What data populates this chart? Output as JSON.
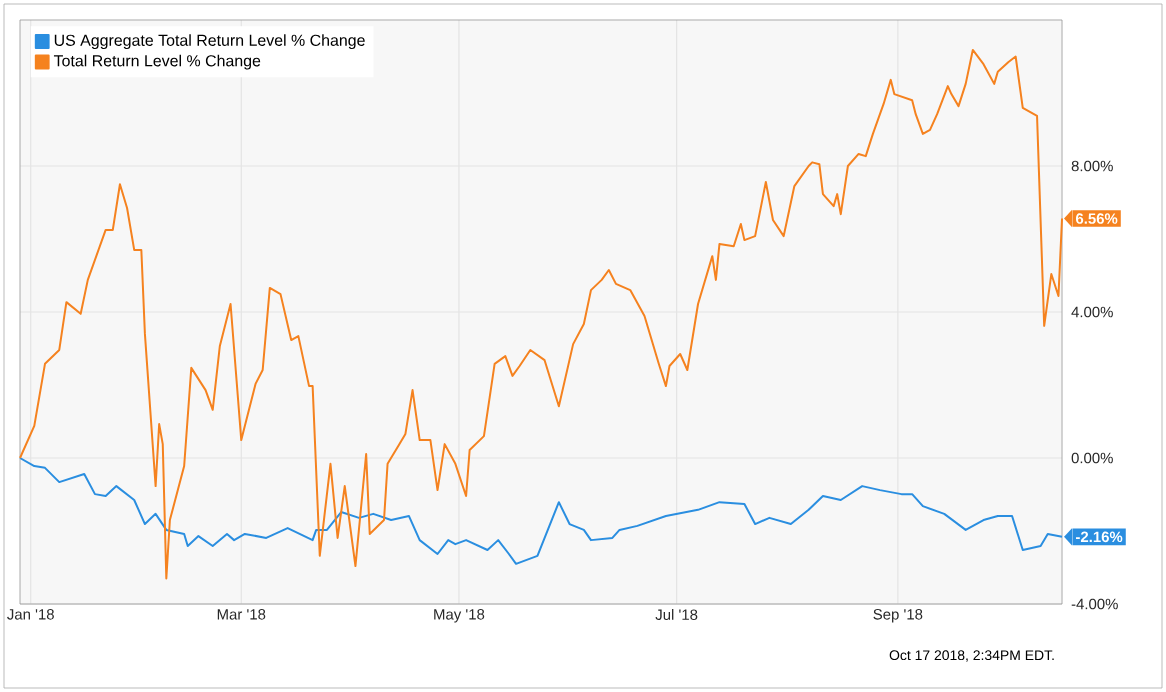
{
  "chart_data": {
    "type": "line",
    "xlim": [
      "2017-12-29",
      "2018-10-17"
    ],
    "ylim": [
      -4,
      12
    ],
    "xticks": [
      {
        "value": "2018-01-01",
        "label": "Jan '18"
      },
      {
        "value": "2018-03-01",
        "label": "Mar '18"
      },
      {
        "value": "2018-05-01",
        "label": "May '18"
      },
      {
        "value": "2018-07-01",
        "label": "Jul '18"
      },
      {
        "value": "2018-09-01",
        "label": "Sep '18"
      }
    ],
    "yticks": [
      {
        "value": -4,
        "label": "-4.00%"
      },
      {
        "value": 0,
        "label": "0.00%"
      },
      {
        "value": 4,
        "label": "4.00%"
      },
      {
        "value": 8,
        "label": "8.00%"
      }
    ],
    "grid": true,
    "legend": "top left",
    "marker": "none",
    "line_style": "solid",
    "series": [
      {
        "name": "US Aggregate Total Return Level % Change",
        "color": "#2a8ee0",
        "x": [
          "2017-12-29",
          "2018-01-02",
          "2018-01-05",
          "2018-01-09",
          "2018-01-16",
          "2018-01-19",
          "2018-01-22",
          "2018-01-25",
          "2018-01-30",
          "2018-02-02",
          "2018-02-05",
          "2018-02-08",
          "2018-02-13",
          "2018-02-14",
          "2018-02-17",
          "2018-02-21",
          "2018-02-25",
          "2018-02-27",
          "2018-03-02",
          "2018-03-08",
          "2018-03-14",
          "2018-03-21",
          "2018-03-22",
          "2018-03-25",
          "2018-03-29",
          "2018-04-03",
          "2018-04-07",
          "2018-04-12",
          "2018-04-17",
          "2018-04-20",
          "2018-04-25",
          "2018-04-28",
          "2018-04-30",
          "2018-05-03",
          "2018-05-09",
          "2018-05-12",
          "2018-05-15",
          "2018-05-17",
          "2018-05-23",
          "2018-05-29",
          "2018-06-01",
          "2018-06-05",
          "2018-06-07",
          "2018-06-13",
          "2018-06-15",
          "2018-06-20",
          "2018-06-28",
          "2018-07-07",
          "2018-07-13",
          "2018-07-20",
          "2018-07-23",
          "2018-07-27",
          "2018-08-02",
          "2018-08-07",
          "2018-08-11",
          "2018-08-16",
          "2018-08-22",
          "2018-08-27",
          "2018-09-02",
          "2018-09-05",
          "2018-09-08",
          "2018-09-14",
          "2018-09-20",
          "2018-09-25",
          "2018-09-29",
          "2018-10-03",
          "2018-10-06",
          "2018-10-11",
          "2018-10-13",
          "2018-10-17"
        ],
        "values": [
          0,
          -0.22,
          -0.27,
          -0.66,
          -0.44,
          -0.99,
          -1.04,
          -0.77,
          -1.15,
          -1.81,
          -1.53,
          -1.97,
          -2.08,
          -2.41,
          -2.14,
          -2.41,
          -2.08,
          -2.25,
          -2.08,
          -2.19,
          -1.92,
          -2.25,
          -1.97,
          -1.97,
          -1.48,
          -1.64,
          -1.53,
          -1.7,
          -1.59,
          -2.25,
          -2.63,
          -2.25,
          -2.36,
          -2.25,
          -2.52,
          -2.25,
          -2.63,
          -2.9,
          -2.68,
          -1.21,
          -1.81,
          -1.97,
          -2.25,
          -2.19,
          -1.97,
          -1.86,
          -1.59,
          -1.42,
          -1.21,
          -1.26,
          -1.81,
          -1.64,
          -1.81,
          -1.42,
          -1.04,
          -1.15,
          -0.77,
          -0.88,
          -0.99,
          -0.99,
          -1.32,
          -1.53,
          -1.97,
          -1.7,
          -1.59,
          -1.59,
          -2.52,
          -2.41,
          -2.08,
          -2.16
        ]
      },
      {
        "name": "Total Return Level % Change",
        "color": "#f5821f",
        "x": [
          "2017-12-29",
          "2018-01-02",
          "2018-01-05",
          "2018-01-09",
          "2018-01-11",
          "2018-01-15",
          "2018-01-17",
          "2018-01-22",
          "2018-01-24",
          "2018-01-26",
          "2018-01-28",
          "2018-01-30",
          "2018-02-01",
          "2018-02-02",
          "2018-02-05",
          "2018-02-06",
          "2018-02-07",
          "2018-02-08",
          "2018-02-09",
          "2018-02-13",
          "2018-02-15",
          "2018-02-19",
          "2018-02-21",
          "2018-02-23",
          "2018-02-26",
          "2018-03-01",
          "2018-03-05",
          "2018-03-07",
          "2018-03-09",
          "2018-03-12",
          "2018-03-15",
          "2018-03-17",
          "2018-03-20",
          "2018-03-21",
          "2018-03-23",
          "2018-03-26",
          "2018-03-28",
          "2018-03-30",
          "2018-04-02",
          "2018-04-05",
          "2018-04-06",
          "2018-04-10",
          "2018-04-11",
          "2018-04-14",
          "2018-04-16",
          "2018-04-18",
          "2018-04-20",
          "2018-04-23",
          "2018-04-25",
          "2018-04-27",
          "2018-04-30",
          "2018-05-03",
          "2018-05-04",
          "2018-05-08",
          "2018-05-11",
          "2018-05-14",
          "2018-05-16",
          "2018-05-18",
          "2018-05-21",
          "2018-05-25",
          "2018-05-29",
          "2018-06-02",
          "2018-06-05",
          "2018-06-07",
          "2018-06-10",
          "2018-06-12",
          "2018-06-14",
          "2018-06-18",
          "2018-06-22",
          "2018-06-26",
          "2018-06-28",
          "2018-06-29",
          "2018-07-02",
          "2018-07-04",
          "2018-07-07",
          "2018-07-11",
          "2018-07-12",
          "2018-07-13",
          "2018-07-17",
          "2018-07-19",
          "2018-07-20",
          "2018-07-23",
          "2018-07-26",
          "2018-07-28",
          "2018-07-31",
          "2018-08-03",
          "2018-08-07",
          "2018-08-08",
          "2018-08-10",
          "2018-08-11",
          "2018-08-14",
          "2018-08-15",
          "2018-08-16",
          "2018-08-18",
          "2018-08-21",
          "2018-08-23",
          "2018-08-25",
          "2018-08-28",
          "2018-08-30",
          "2018-08-31",
          "2018-09-05",
          "2018-09-06",
          "2018-09-08",
          "2018-09-10",
          "2018-09-12",
          "2018-09-15",
          "2018-09-16",
          "2018-09-18",
          "2018-09-20",
          "2018-09-22",
          "2018-09-25",
          "2018-09-28",
          "2018-09-29",
          "2018-10-02",
          "2018-10-04",
          "2018-10-06",
          "2018-10-10",
          "2018-10-12",
          "2018-10-14",
          "2018-10-16",
          "2018-10-17"
        ],
        "values": [
          0,
          0.88,
          2.58,
          2.96,
          4.27,
          3.95,
          4.88,
          6.25,
          6.25,
          7.5,
          6.85,
          5.7,
          5.7,
          3.4,
          -0.77,
          0.93,
          0.38,
          -3.3,
          -1.7,
          -0.22,
          2.47,
          1.86,
          1.32,
          3.07,
          4.22,
          0.49,
          2.03,
          2.41,
          4.66,
          4.49,
          3.23,
          3.34,
          1.97,
          1.97,
          -2.68,
          -0.16,
          -2.19,
          -0.77,
          -2.96,
          0.11,
          -2.08,
          -1.7,
          -0.16,
          0.33,
          0.66,
          1.86,
          0.49,
          0.49,
          -0.88,
          0.38,
          -0.16,
          -1.04,
          0.22,
          0.6,
          2.58,
          2.79,
          2.25,
          2.52,
          2.96,
          2.68,
          1.42,
          3.12,
          3.67,
          4.6,
          4.88,
          5.15,
          4.77,
          4.6,
          3.89,
          2.58,
          1.97,
          2.52,
          2.85,
          2.41,
          4.22,
          5.53,
          4.88,
          5.86,
          5.8,
          6.41,
          5.97,
          6.08,
          7.56,
          6.52,
          6.08,
          7.45,
          8.0,
          8.1,
          8.05,
          7.23,
          6.9,
          7.23,
          6.68,
          8.0,
          8.33,
          8.27,
          8.88,
          9.7,
          10.36,
          9.97,
          9.8,
          9.42,
          8.88,
          8.99,
          9.42,
          10.19,
          9.97,
          9.64,
          10.25,
          11.18,
          10.79,
          10.25,
          10.58,
          10.85,
          11.0,
          9.59,
          9.37,
          3.62,
          5.04,
          4.44,
          6.56
        ]
      }
    ],
    "annotations": [
      {
        "text": "6.56%",
        "x": "2018-10-17",
        "y": 6.56
      },
      {
        "text": "-2.16%",
        "x": "2018-10-17",
        "y": -2.16
      },
      "Oct 17 2018, 2:34PM EDT."
    ]
  }
}
